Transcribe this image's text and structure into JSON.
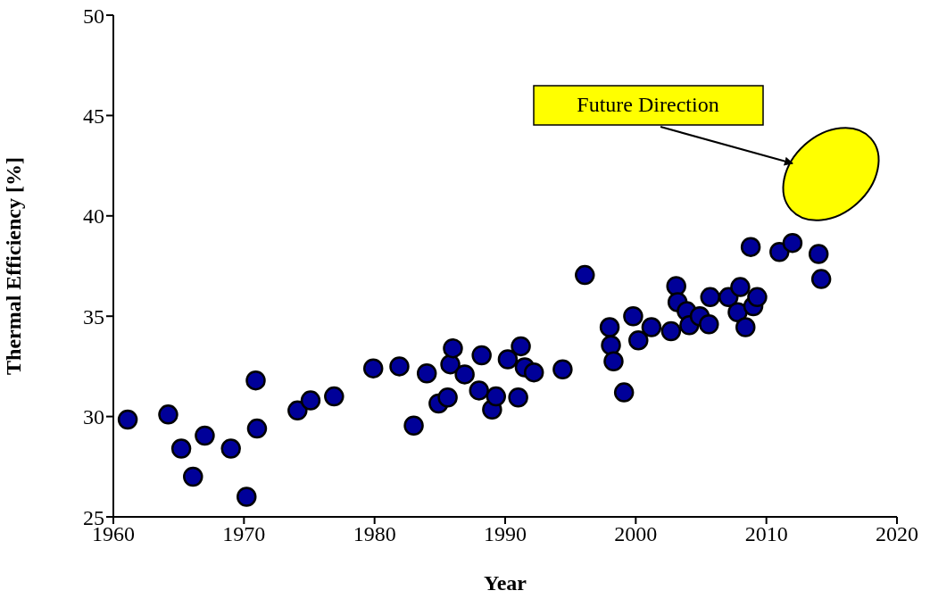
{
  "chart_data": {
    "type": "scatter",
    "xlabel": "Year",
    "ylabel": "Thermal Efficiency [%]",
    "annotations": [
      "Future Direction"
    ],
    "x": [
      1961.1,
      1964.2,
      1965.2,
      1966.1,
      1967.0,
      1969.0,
      1970.2,
      1970.9,
      1971.0,
      1974.1,
      1975.1,
      1976.9,
      1979.9,
      1981.9,
      1983.0,
      1984.0,
      1984.9,
      1985.6,
      1985.8,
      1986.0,
      1986.9,
      1988.0,
      1988.2,
      1989.0,
      1989.3,
      1990.2,
      1991.0,
      1991.2,
      1991.5,
      1992.2,
      1994.4,
      1996.1,
      1998.0,
      1998.1,
      1998.3,
      1999.1,
      1999.8,
      2000.2,
      2001.2,
      2002.7,
      2003.1,
      2003.2,
      2003.9,
      2004.1,
      2004.9,
      2005.6,
      2005.7,
      2007.1,
      2008.0,
      2007.8,
      2008.4,
      2008.8,
      2009.0,
      2009.3,
      2011.0,
      2012.0,
      2014.0,
      2014.2
    ],
    "values": [
      29.85,
      30.1,
      28.4,
      27.0,
      29.05,
      28.4,
      26.0,
      31.8,
      29.4,
      30.3,
      30.8,
      31.0,
      32.4,
      32.5,
      29.55,
      32.15,
      30.65,
      30.95,
      32.6,
      33.4,
      32.1,
      31.3,
      33.05,
      30.35,
      31.0,
      32.85,
      30.95,
      33.5,
      32.45,
      32.2,
      32.35,
      37.05,
      34.45,
      33.55,
      32.75,
      31.2,
      35.0,
      33.8,
      34.45,
      34.25,
      36.5,
      35.7,
      35.25,
      34.55,
      35.0,
      34.6,
      35.95,
      35.95,
      36.45,
      35.2,
      34.45,
      38.45,
      35.5,
      35.95,
      38.2,
      38.65,
      38.1,
      36.85
    ],
    "color": "#000099",
    "marker": "circle",
    "grid": false,
    "legend": false,
    "xlim": [
      1960,
      2020
    ],
    "xticks": [
      1960,
      1970,
      1980,
      1990,
      2000,
      2010,
      2020
    ],
    "ylim": [
      25,
      50
    ],
    "yticks": [
      25,
      30,
      35,
      40,
      45,
      50
    ]
  }
}
